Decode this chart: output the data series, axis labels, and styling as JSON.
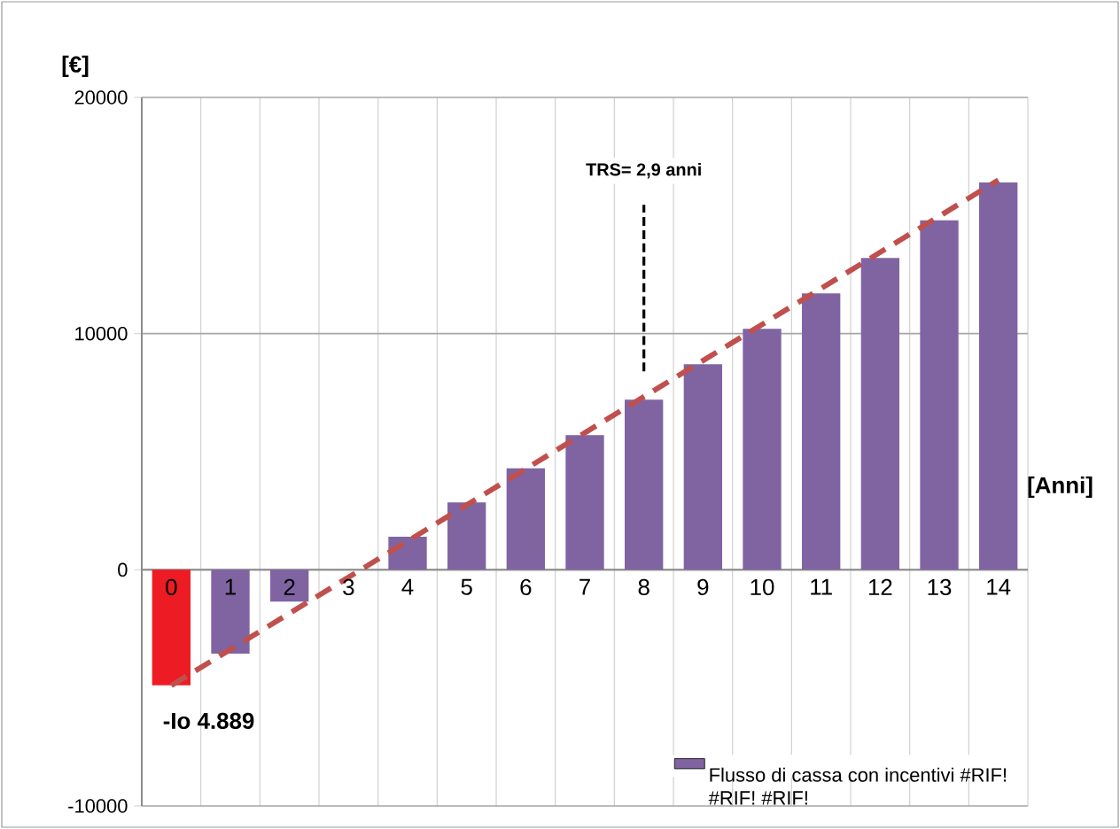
{
  "chart_data": {
    "type": "bar",
    "xlabel": "[Anni]",
    "ylabel": "[€]",
    "categories": [
      "0",
      "1",
      "2",
      "3",
      "4",
      "5",
      "6",
      "7",
      "8",
      "9",
      "10",
      "11",
      "12",
      "13",
      "14"
    ],
    "series": [
      {
        "name": "Flusso di cassa con incentivi #RIF! #RIF! #RIF!",
        "color": "#8064a2",
        "colors": [
          "#ed1c24",
          "#8064a2",
          "#8064a2",
          "#8064a2",
          "#8064a2",
          "#8064a2",
          "#8064a2",
          "#8064a2",
          "#8064a2",
          "#8064a2",
          "#8064a2",
          "#8064a2",
          "#8064a2",
          "#8064a2",
          "#8064a2"
        ],
        "values": [
          -4889,
          -3550,
          -1350,
          0,
          1400,
          2850,
          4300,
          5700,
          7200,
          8700,
          10200,
          11700,
          13200,
          14800,
          16400
        ],
        "value_labels": [
          "-Io 4.889",
          null,
          null,
          null,
          null,
          null,
          null,
          null,
          null,
          null,
          null,
          null,
          null,
          null,
          null
        ]
      },
      {
        "type": "line",
        "color": "#c0504d",
        "line_style": "dashed",
        "x": [
          "0",
          "14"
        ],
        "values": [
          -4900,
          16500
        ]
      },
      {
        "type": "line",
        "color": "#000000",
        "line_style": "dashed",
        "x": [
          "8",
          "8"
        ],
        "values": [
          8400,
          15450
        ]
      }
    ],
    "annotations": [
      "TRS= 2,9 anni"
    ],
    "ylim": [
      -10000,
      20000
    ],
    "yticks": [
      -10000,
      0,
      10000,
      20000
    ],
    "grid": true,
    "legend": "bottom right"
  }
}
